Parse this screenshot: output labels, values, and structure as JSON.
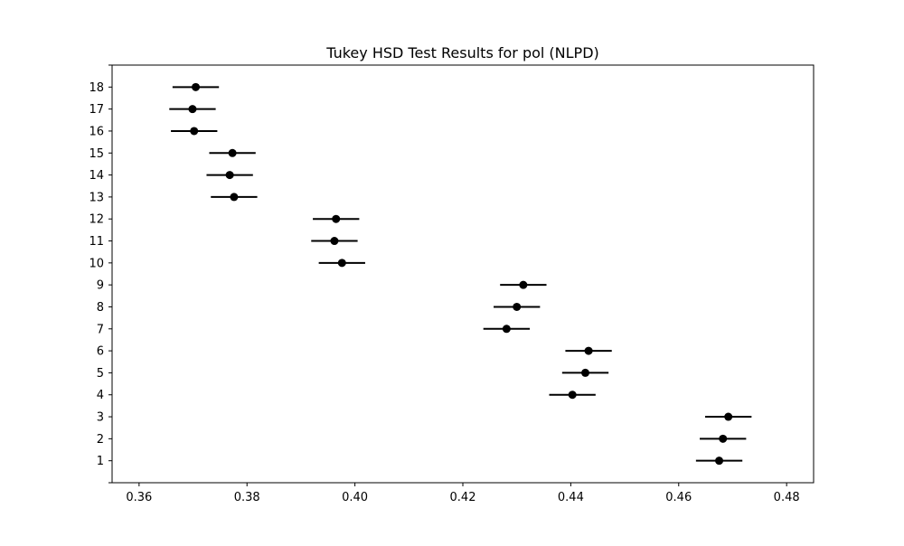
{
  "chart_data": {
    "type": "scatter",
    "subtype": "errorbar",
    "title": "Tukey HSD Test Results for pol (NLPD)",
    "xlabel": "",
    "ylabel": "",
    "xlim": [
      0.355,
      0.485
    ],
    "ylim": [
      0,
      19
    ],
    "xticks": [
      0.36,
      0.38,
      0.4,
      0.42,
      0.44,
      0.46,
      0.48
    ],
    "xtick_labels": [
      "0.36",
      "0.38",
      "0.40",
      "0.42",
      "0.44",
      "0.46",
      "0.48"
    ],
    "yticks": [
      0,
      1,
      2,
      3,
      4,
      5,
      6,
      7,
      8,
      9,
      10,
      11,
      12,
      13,
      14,
      15,
      16,
      17,
      18,
      19
    ],
    "ytick_labels": [
      "",
      "1",
      "2",
      "3",
      "4",
      "5",
      "6",
      "7",
      "8",
      "9",
      "10",
      "11",
      "12",
      "13",
      "14",
      "15",
      "16",
      "17",
      "18",
      ""
    ],
    "grid": false,
    "legend": "none",
    "marker_color": "#000000",
    "points": [
      {
        "y": 1,
        "mean": 0.4675,
        "lower": 0.4632,
        "upper": 0.4718
      },
      {
        "y": 2,
        "mean": 0.4682,
        "lower": 0.4639,
        "upper": 0.4725
      },
      {
        "y": 3,
        "mean": 0.4692,
        "lower": 0.4649,
        "upper": 0.4735
      },
      {
        "y": 4,
        "mean": 0.4403,
        "lower": 0.436,
        "upper": 0.4446
      },
      {
        "y": 5,
        "mean": 0.4427,
        "lower": 0.4384,
        "upper": 0.447
      },
      {
        "y": 6,
        "mean": 0.4433,
        "lower": 0.439,
        "upper": 0.4476
      },
      {
        "y": 7,
        "mean": 0.4281,
        "lower": 0.4238,
        "upper": 0.4324
      },
      {
        "y": 8,
        "mean": 0.43,
        "lower": 0.4257,
        "upper": 0.4343
      },
      {
        "y": 9,
        "mean": 0.4312,
        "lower": 0.4269,
        "upper": 0.4355
      },
      {
        "y": 10,
        "mean": 0.3976,
        "lower": 0.3933,
        "upper": 0.4019
      },
      {
        "y": 11,
        "mean": 0.3962,
        "lower": 0.3919,
        "upper": 0.4005
      },
      {
        "y": 12,
        "mean": 0.3965,
        "lower": 0.3922,
        "upper": 0.4008
      },
      {
        "y": 13,
        "mean": 0.3776,
        "lower": 0.3733,
        "upper": 0.3819
      },
      {
        "y": 14,
        "mean": 0.3768,
        "lower": 0.3725,
        "upper": 0.3811
      },
      {
        "y": 15,
        "mean": 0.3773,
        "lower": 0.373,
        "upper": 0.3816
      },
      {
        "y": 16,
        "mean": 0.3702,
        "lower": 0.3659,
        "upper": 0.3745
      },
      {
        "y": 17,
        "mean": 0.3699,
        "lower": 0.3656,
        "upper": 0.3742
      },
      {
        "y": 18,
        "mean": 0.3705,
        "lower": 0.3662,
        "upper": 0.3748
      }
    ]
  }
}
